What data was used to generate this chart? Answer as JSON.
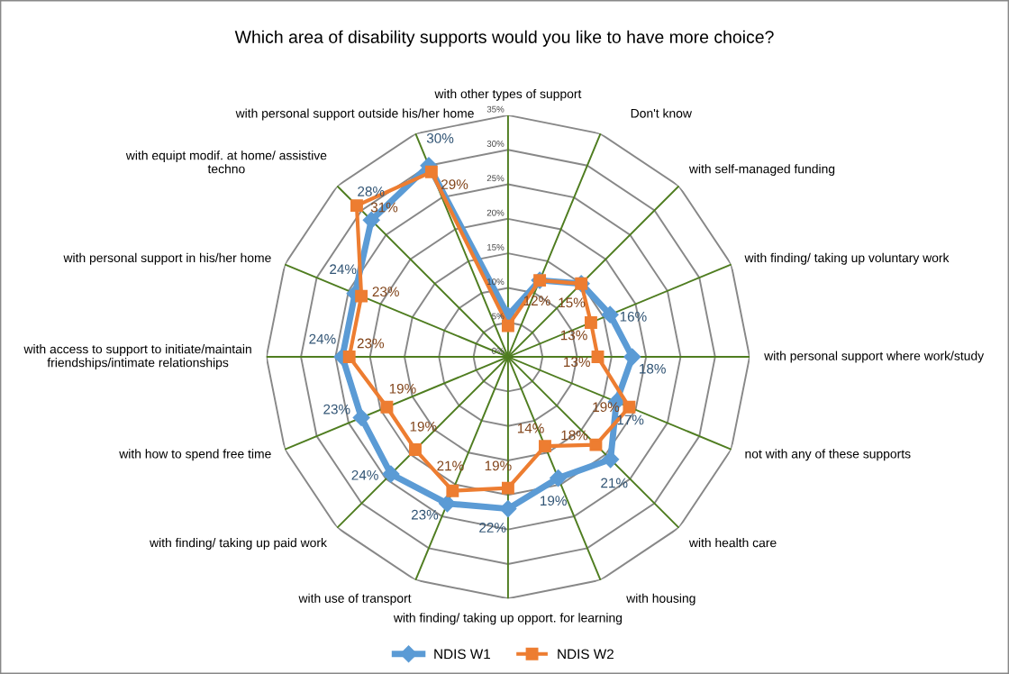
{
  "chart_data": {
    "type": "radar",
    "title": "Which area of disability supports would you like to have more choice?",
    "categories": [
      "with other types of support",
      "Don't know",
      "with self-managed funding",
      "with finding/ taking up voluntary work",
      "with personal support where work/study",
      "not with any of these supports",
      "with health care",
      "with housing",
      "with finding/ taking up opport. for learning",
      "with use of transport",
      "with finding/ taking up paid work",
      "with how to spend free time",
      "with access to support to initiate/maintain\nfriendships/intimate relationships",
      "with personal support in his/her home",
      "with equipt modif. at home/ assistive\ntechno",
      "with personal support outside his/her home"
    ],
    "series": [
      {
        "name": "NDIS W1",
        "color": "#5b9bd5",
        "marker": "diamond",
        "values": [
          6,
          12,
          15,
          16,
          18,
          17,
          21,
          19,
          22,
          23,
          24,
          23,
          24,
          24,
          28,
          30
        ],
        "value_labels": [
          null,
          null,
          null,
          "16%",
          "18%",
          "17%",
          "21%",
          "19%",
          "22%",
          "23%",
          "24%",
          "23%",
          "24%",
          "24%",
          "28%",
          "30%"
        ]
      },
      {
        "name": "NDIS W2",
        "color": "#ed7d31",
        "marker": "square",
        "values": [
          4.5,
          12,
          15,
          13,
          13,
          19,
          18,
          14,
          19,
          21,
          19,
          19,
          23,
          23,
          31,
          29
        ],
        "value_labels": [
          null,
          "12%",
          "15%",
          "13%",
          "13%",
          "19%",
          "18%",
          "14%",
          "19%",
          "21%",
          "19%",
          "19%",
          "23%",
          "23%",
          "31%",
          "29%"
        ]
      }
    ],
    "ylim": [
      0,
      35
    ],
    "yticks": [
      {
        "value": 0,
        "label": "0%"
      },
      {
        "value": 5,
        "label": "5%"
      },
      {
        "value": 10,
        "label": "10%"
      },
      {
        "value": 15,
        "label": "15%"
      },
      {
        "value": 20,
        "label": "20%"
      },
      {
        "value": 25,
        "label": "25%"
      },
      {
        "value": 30,
        "label": "30%"
      },
      {
        "value": 35,
        "label": "35%"
      }
    ],
    "grid": true,
    "legend": "bottom"
  }
}
